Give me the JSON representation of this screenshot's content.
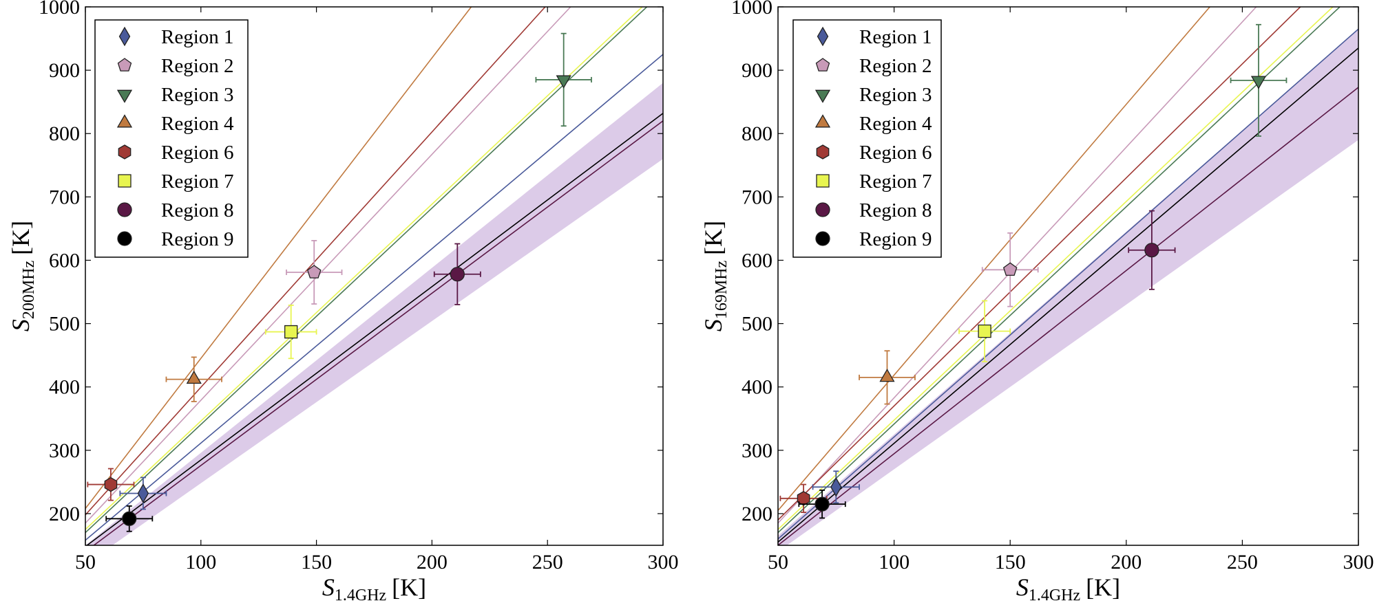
{
  "chart_data": [
    {
      "type": "scatter",
      "title": "",
      "xlabel": "S_1.4GHz [K]",
      "xlabel_main": "S",
      "xlabel_sub": "1.4GHz",
      "xlabel_unit": "[K]",
      "ylabel": "S_200MHz [K]",
      "ylabel_main": "S",
      "ylabel_sub": "200MHz",
      "ylabel_unit": "[K]",
      "xlim": [
        50,
        300
      ],
      "ylim": [
        150,
        1000
      ],
      "xticks": [
        50,
        100,
        150,
        200,
        250,
        300
      ],
      "yticks": [
        200,
        300,
        400,
        500,
        600,
        700,
        800,
        900,
        1000
      ],
      "legend_position": "top-left",
      "band": {
        "color": "#dccbe8",
        "lower": [
          [
            50,
            120
          ],
          [
            300,
            760
          ]
        ],
        "upper": [
          [
            50,
            150
          ],
          [
            300,
            880
          ]
        ]
      },
      "series": [
        {
          "name": "Region 1",
          "marker": "diamond",
          "color": "#4a5a9a",
          "x": 75,
          "y": 232,
          "xerr": 10,
          "yerr": 25,
          "fit": [
            [
              50,
              158
            ],
            [
              300,
              925
            ]
          ]
        },
        {
          "name": "Region 2",
          "marker": "pentagon",
          "color": "#c89ab8",
          "x": 149,
          "y": 581,
          "xerr": 12,
          "yerr": 50,
          "fit": [
            [
              50,
              185
            ],
            [
              260,
              1000
            ]
          ]
        },
        {
          "name": "Region 3",
          "marker": "triangle-down",
          "color": "#4a7a55",
          "x": 257,
          "y": 885,
          "xerr": 12,
          "yerr": 73,
          "fit": [
            [
              50,
              170
            ],
            [
              293,
              1000
            ]
          ]
        },
        {
          "name": "Region 4",
          "marker": "triangle-up",
          "color": "#c07a40",
          "x": 97,
          "y": 412,
          "xerr": 12,
          "yerr": 35,
          "fit": [
            [
              50,
              208
            ],
            [
              217,
              1000
            ]
          ]
        },
        {
          "name": "Region 6",
          "marker": "hexagon",
          "color": "#a03a35",
          "x": 61,
          "y": 246,
          "xerr": 10,
          "yerr": 25,
          "fit": [
            [
              50,
              198
            ],
            [
              249,
              1000
            ]
          ]
        },
        {
          "name": "Region 7",
          "marker": "square",
          "color": "#e8f550",
          "x": 139,
          "y": 487,
          "xerr": 11,
          "yerr": 42,
          "fit": [
            [
              50,
              175
            ],
            [
              291,
              1000
            ]
          ]
        },
        {
          "name": "Region 8",
          "marker": "circle",
          "color": "#5a1845",
          "x": 211,
          "y": 578,
          "xerr": 10,
          "yerr": 48,
          "fit": [
            [
              50,
              140
            ],
            [
              300,
              820
            ]
          ]
        },
        {
          "name": "Region 9",
          "marker": "circle",
          "color": "#000000",
          "x": 69,
          "y": 192,
          "xerr": 10,
          "yerr": 20,
          "fit": [
            [
              50,
              148
            ],
            [
              300,
              832
            ]
          ]
        }
      ]
    },
    {
      "type": "scatter",
      "title": "",
      "xlabel": "S_1.4GHz [K]",
      "xlabel_main": "S",
      "xlabel_sub": "1.4GHz",
      "xlabel_unit": "[K]",
      "ylabel": "S_169MHz [K]",
      "ylabel_main": "S",
      "ylabel_sub": "169MHz",
      "ylabel_unit": "[K]",
      "xlim": [
        50,
        300
      ],
      "ylim": [
        150,
        1000
      ],
      "xticks": [
        50,
        100,
        150,
        200,
        250,
        300
      ],
      "yticks": [
        200,
        300,
        400,
        500,
        600,
        700,
        800,
        900,
        1000
      ],
      "legend_position": "top-left",
      "band": {
        "color": "#dccbe8",
        "lower": [
          [
            50,
            140
          ],
          [
            300,
            790
          ]
        ],
        "upper": [
          [
            50,
            165
          ],
          [
            300,
            965
          ]
        ]
      },
      "series": [
        {
          "name": "Region 1",
          "marker": "diamond",
          "color": "#4a5a9a",
          "x": 75,
          "y": 242,
          "xerr": 10,
          "yerr": 25,
          "fit": [
            [
              50,
              160
            ],
            [
              300,
              965
            ]
          ]
        },
        {
          "name": "Region 2",
          "marker": "pentagon",
          "color": "#c89ab8",
          "x": 150,
          "y": 585,
          "xerr": 12,
          "yerr": 58,
          "fit": [
            [
              50,
              185
            ],
            [
              256,
              1000
            ]
          ]
        },
        {
          "name": "Region 3",
          "marker": "triangle-down",
          "color": "#4a7a55",
          "x": 257,
          "y": 884,
          "xerr": 12,
          "yerr": 88,
          "fit": [
            [
              50,
              170
            ],
            [
              292,
              1000
            ]
          ]
        },
        {
          "name": "Region 4",
          "marker": "triangle-up",
          "color": "#c07a40",
          "x": 97,
          "y": 415,
          "xerr": 12,
          "yerr": 42,
          "fit": [
            [
              50,
              205
            ],
            [
              236,
              1000
            ]
          ]
        },
        {
          "name": "Region 6",
          "marker": "hexagon",
          "color": "#a03a35",
          "x": 61,
          "y": 224,
          "xerr": 10,
          "yerr": 22,
          "fit": [
            [
              50,
              190
            ],
            [
              275,
              1000
            ]
          ]
        },
        {
          "name": "Region 7",
          "marker": "square",
          "color": "#e8f550",
          "x": 139,
          "y": 488,
          "xerr": 11,
          "yerr": 48,
          "fit": [
            [
              50,
              175
            ],
            [
              289,
              1000
            ]
          ]
        },
        {
          "name": "Region 8",
          "marker": "circle",
          "color": "#5a1845",
          "x": 211,
          "y": 616,
          "xerr": 10,
          "yerr": 62,
          "fit": [
            [
              50,
              150
            ],
            [
              300,
              873
            ]
          ]
        },
        {
          "name": "Region 9",
          "marker": "circle",
          "color": "#000000",
          "x": 69,
          "y": 215,
          "xerr": 10,
          "yerr": 22,
          "fit": [
            [
              50,
              155
            ],
            [
              300,
              935
            ]
          ]
        }
      ]
    }
  ]
}
